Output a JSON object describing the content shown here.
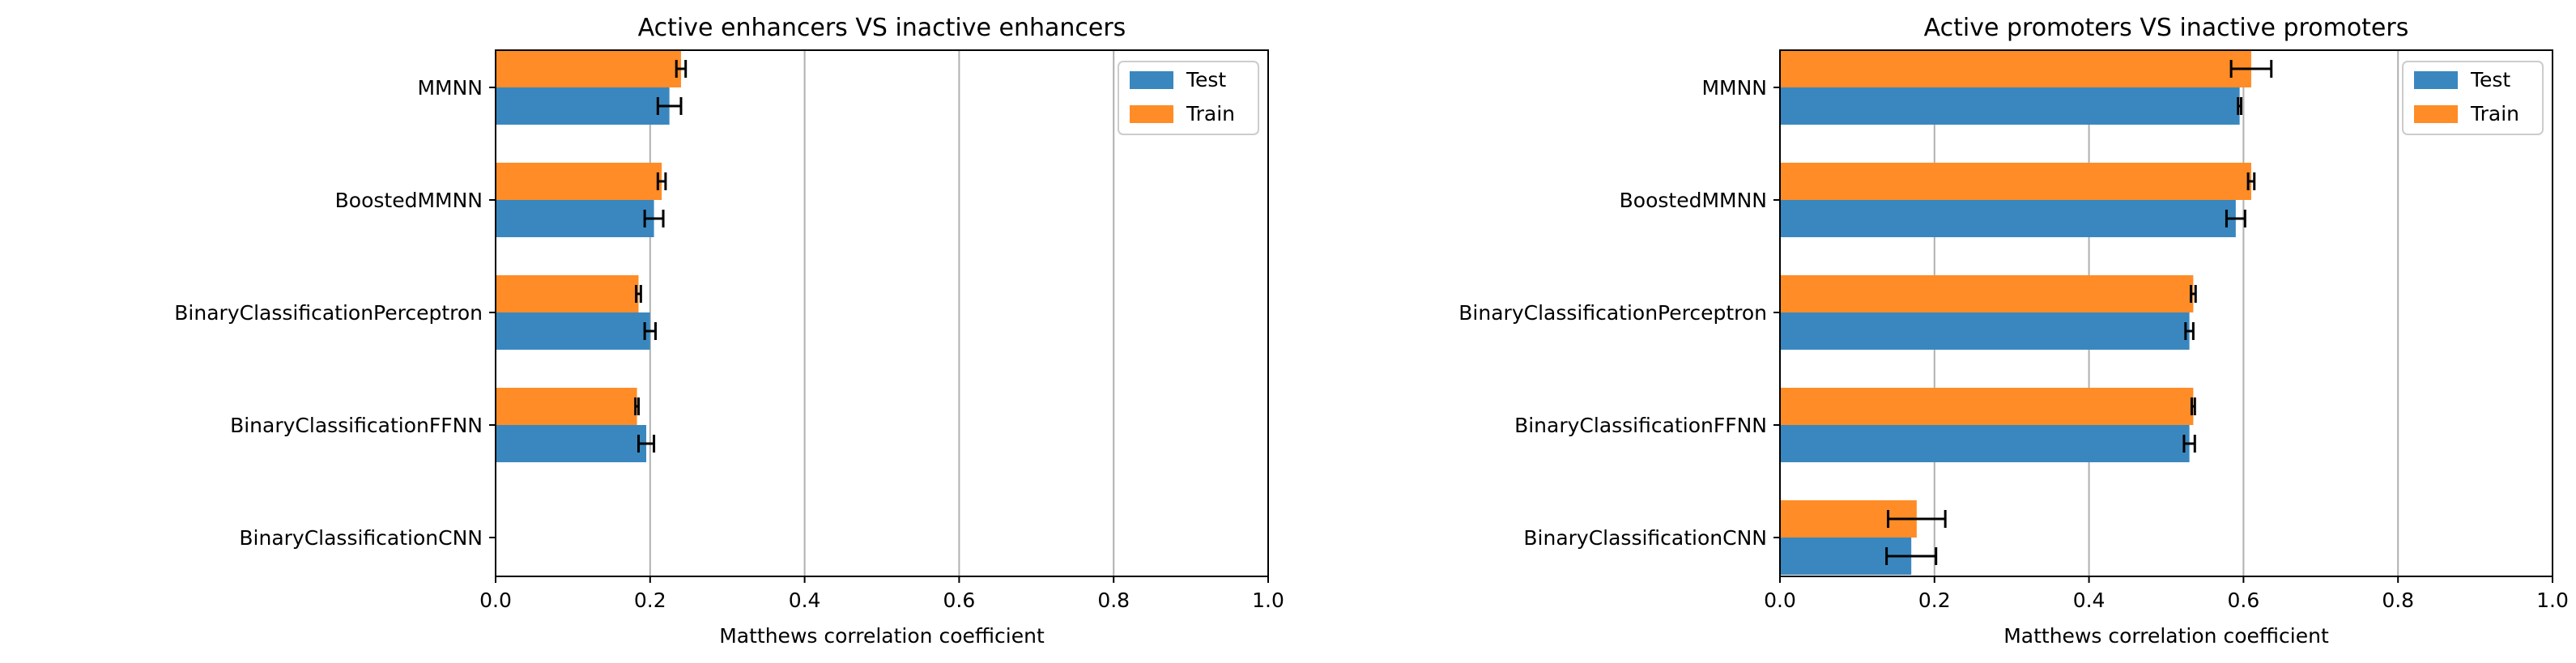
{
  "chart_data": [
    {
      "type": "bar",
      "orientation": "horizontal",
      "title": "Active enhancers VS inactive enhancers",
      "xlabel": "Matthews correlation coefficient",
      "ylabel": "",
      "xlim": [
        0.0,
        1.0
      ],
      "xticks": [
        "0.0",
        "0.2",
        "0.4",
        "0.6",
        "0.8",
        "1.0"
      ],
      "categories": [
        "MMNN",
        "BoostedMMNN",
        "BinaryClassificationPerceptron",
        "BinaryClassificationFFNN",
        "BinaryClassificationCNN"
      ],
      "grid": "vertical",
      "legend_position": "top-right",
      "series": [
        {
          "name": "Test",
          "color": "#3a87bf",
          "values": [
            0.225,
            0.205,
            0.2,
            0.195,
            0.0
          ],
          "errors": [
            0.015,
            0.012,
            0.007,
            0.01,
            0.0
          ]
        },
        {
          "name": "Train",
          "color": "#ff8c26",
          "values": [
            0.24,
            0.215,
            0.185,
            0.183,
            0.0
          ],
          "errors": [
            0.006,
            0.005,
            0.003,
            0.002,
            0.0
          ]
        }
      ]
    },
    {
      "type": "bar",
      "orientation": "horizontal",
      "title": "Active promoters VS inactive promoters",
      "xlabel": "Matthews correlation coefficient",
      "ylabel": "",
      "xlim": [
        0.0,
        1.0
      ],
      "xticks": [
        "0.0",
        "0.2",
        "0.4",
        "0.6",
        "0.8",
        "1.0"
      ],
      "categories": [
        "MMNN",
        "BoostedMMNN",
        "BinaryClassificationPerceptron",
        "BinaryClassificationFFNN",
        "BinaryClassificationCNN"
      ],
      "grid": "vertical",
      "legend_position": "top-right",
      "series": [
        {
          "name": "Test",
          "color": "#3a87bf",
          "values": [
            0.595,
            0.59,
            0.53,
            0.53,
            0.17
          ],
          "errors": [
            0.002,
            0.012,
            0.005,
            0.007,
            0.032
          ]
        },
        {
          "name": "Train",
          "color": "#ff8c26",
          "values": [
            0.61,
            0.61,
            0.535,
            0.535,
            0.177
          ],
          "errors": [
            0.026,
            0.004,
            0.003,
            0.002,
            0.037
          ]
        }
      ]
    }
  ]
}
